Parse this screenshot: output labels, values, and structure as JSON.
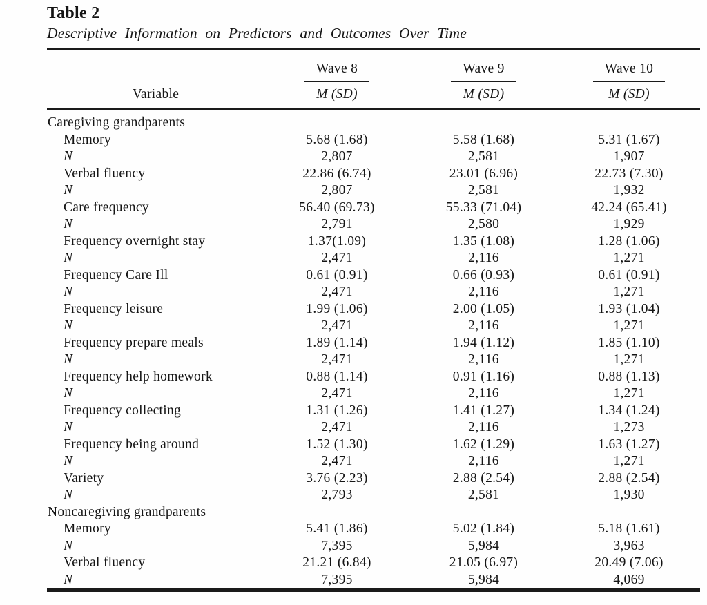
{
  "title": "Table 2",
  "caption": "Descriptive Information on Predictors and Outcomes Over Time",
  "table": {
    "variable_header": "Variable",
    "wave_headers": [
      "Wave 8",
      "Wave 9",
      "Wave 10"
    ],
    "stat_header": "M (SD)",
    "rows": [
      {
        "type": "section",
        "label": "Caregiving grandparents"
      },
      {
        "type": "data",
        "label": "Memory",
        "values": [
          "5.68 (1.68)",
          "5.58 (1.68)",
          "5.31 (1.67)"
        ]
      },
      {
        "type": "n",
        "label": "N",
        "values": [
          "2,807",
          "2,581",
          "1,907"
        ]
      },
      {
        "type": "data",
        "label": "Verbal fluency",
        "values": [
          "22.86 (6.74)",
          "23.01 (6.96)",
          "22.73 (7.30)"
        ]
      },
      {
        "type": "n",
        "label": "N",
        "values": [
          "2,807",
          "2,581",
          "1,932"
        ]
      },
      {
        "type": "data",
        "label": "Care frequency",
        "values": [
          "56.40 (69.73)",
          "55.33 (71.04)",
          "42.24 (65.41)"
        ]
      },
      {
        "type": "n",
        "label": "N",
        "values": [
          "2,791",
          "2,580",
          "1,929"
        ]
      },
      {
        "type": "data",
        "label": "Frequency overnight stay",
        "values": [
          "1.37(1.09)",
          "1.35 (1.08)",
          "1.28 (1.06)"
        ]
      },
      {
        "type": "n",
        "label": "N",
        "values": [
          "2,471",
          "2,116",
          "1,271"
        ]
      },
      {
        "type": "data",
        "label": "Frequency Care Ill",
        "values": [
          "0.61 (0.91)",
          "0.66 (0.93)",
          "0.61 (0.91)"
        ]
      },
      {
        "type": "n",
        "label": "N",
        "values": [
          "2,471",
          "2,116",
          "1,271"
        ]
      },
      {
        "type": "data",
        "label": "Frequency leisure",
        "values": [
          "1.99 (1.06)",
          "2.00 (1.05)",
          "1.93 (1.04)"
        ]
      },
      {
        "type": "n",
        "label": "N",
        "values": [
          "2,471",
          "2,116",
          "1,271"
        ]
      },
      {
        "type": "data",
        "label": "Frequency prepare meals",
        "values": [
          "1.89 (1.14)",
          "1.94 (1.12)",
          "1.85 (1.10)"
        ]
      },
      {
        "type": "n",
        "label": "N",
        "values": [
          "2,471",
          "2,116",
          "1,271"
        ]
      },
      {
        "type": "data",
        "label": "Frequency help homework",
        "values": [
          "0.88 (1.14)",
          "0.91 (1.16)",
          "0.88 (1.13)"
        ]
      },
      {
        "type": "n",
        "label": "N",
        "values": [
          "2,471",
          "2,116",
          "1,271"
        ]
      },
      {
        "type": "data",
        "label": "Frequency collecting",
        "values": [
          "1.31 (1.26)",
          "1.41 (1.27)",
          "1.34 (1.24)"
        ]
      },
      {
        "type": "n",
        "label": "N",
        "values": [
          "2,471",
          "2,116",
          "1,273"
        ]
      },
      {
        "type": "data",
        "label": "Frequency being around",
        "values": [
          "1.52 (1.30)",
          "1.62 (1.29)",
          "1.63 (1.27)"
        ]
      },
      {
        "type": "n",
        "label": "N",
        "values": [
          "2,471",
          "2,116",
          "1,271"
        ]
      },
      {
        "type": "data",
        "label": "Variety",
        "values": [
          "3.76 (2.23)",
          "2.88 (2.54)",
          "2.88 (2.54)"
        ]
      },
      {
        "type": "n",
        "label": "N",
        "values": [
          "2,793",
          "2,581",
          "1,930"
        ]
      },
      {
        "type": "section",
        "label": "Noncaregiving grandparents"
      },
      {
        "type": "data",
        "label": "Memory",
        "values": [
          "5.41 (1.86)",
          "5.02 (1.84)",
          "5.18 (1.61)"
        ]
      },
      {
        "type": "n",
        "label": "N",
        "values": [
          "7,395",
          "5,984",
          "3,963"
        ]
      },
      {
        "type": "data",
        "label": "Verbal fluency",
        "values": [
          "21.21 (6.84)",
          "21.05 (6.97)",
          "20.49 (7.06)"
        ]
      },
      {
        "type": "n",
        "label": "N",
        "values": [
          "7,395",
          "5,984",
          "4,069"
        ]
      }
    ]
  }
}
